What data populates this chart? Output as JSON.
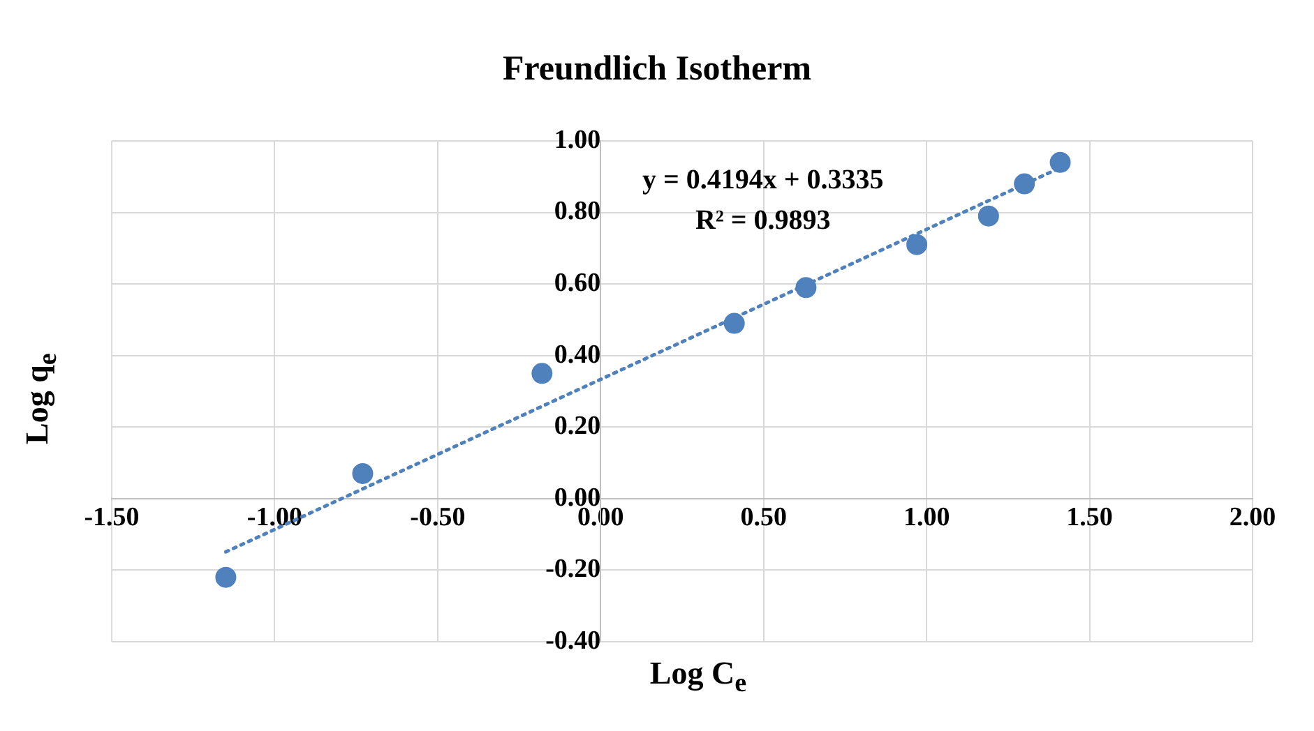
{
  "chart_data": {
    "type": "scatter",
    "title": "Freundlich Isotherm",
    "xlabel": "Log C$_{e}$",
    "ylabel": "Log q$_{e}$",
    "annotations": [
      "y = 0.4194x + 0.3335",
      "R² = 0.9893"
    ],
    "series": [
      {
        "type": "scatter",
        "color": "#4f81bd",
        "marker": "circle",
        "x": [
          -1.15,
          -0.73,
          -0.18,
          0.41,
          0.63,
          0.97,
          1.19,
          1.3,
          1.41
        ],
        "values": [
          -0.22,
          0.07,
          0.35,
          0.49,
          0.59,
          0.71,
          0.79,
          0.88,
          0.94
        ]
      },
      {
        "type": "line",
        "color": "#4f81bd",
        "line_style": "dotted",
        "marker": "none",
        "x": [
          -1.15,
          1.41
        ],
        "values": [
          -0.149,
          0.925
        ]
      }
    ],
    "xlim": [
      -1.5,
      2
    ],
    "ylim": [
      -0.4,
      1
    ],
    "xticks": [
      {
        "value": -1.5,
        "label": "-1.50"
      },
      {
        "value": -1,
        "label": "-1.00"
      },
      {
        "value": -0.5,
        "label": "-0.50"
      },
      {
        "value": 0,
        "label": "0.00"
      },
      {
        "value": 0.5,
        "label": "0.50"
      },
      {
        "value": 1,
        "label": "1.00"
      },
      {
        "value": 1.5,
        "label": "1.50"
      },
      {
        "value": 2,
        "label": "2.00"
      }
    ],
    "yticks": [
      {
        "value": -0.4,
        "label": "-0.40"
      },
      {
        "value": -0.2,
        "label": "-0.20"
      },
      {
        "value": 0,
        "label": "0.00"
      },
      {
        "value": 0.2,
        "label": "0.20"
      },
      {
        "value": 0.4,
        "label": "0.40"
      },
      {
        "value": 0.6,
        "label": "0.60"
      },
      {
        "value": 0.8,
        "label": "0.80"
      },
      {
        "value": 1,
        "label": "1.00"
      }
    ],
    "grid": true,
    "legend": false
  }
}
